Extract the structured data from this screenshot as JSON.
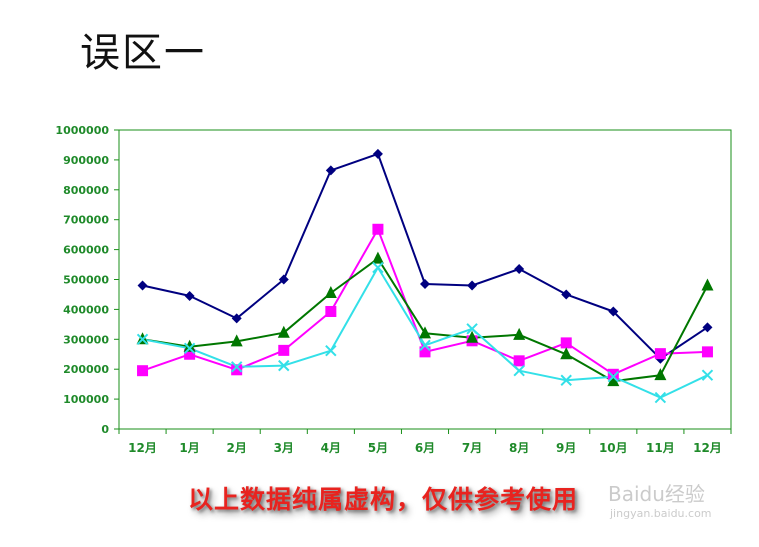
{
  "slide": {
    "title": "误区一",
    "caption": "以上数据纯属虚构，仅供参考使用",
    "watermark": "Baidu经验",
    "watermark_sub": "jingyan.baidu.com"
  },
  "chart_data": {
    "type": "line",
    "categories": [
      "12月",
      "1月",
      "2月",
      "3月",
      "4月",
      "5月",
      "6月",
      "7月",
      "8月",
      "9月",
      "10月",
      "11月",
      "12月"
    ],
    "ylim": [
      0,
      1000000
    ],
    "yticks": [
      0,
      100000,
      200000,
      300000,
      400000,
      500000,
      600000,
      700000,
      800000,
      900000,
      1000000
    ],
    "grid": false,
    "legend": "none",
    "series": [
      {
        "color": "#000080",
        "marker": "diamond",
        "values": [
          480000,
          445000,
          370000,
          500000,
          865000,
          920000,
          485000,
          480000,
          535000,
          450000,
          393000,
          235000,
          340000
        ]
      },
      {
        "color": "#ff00ff",
        "marker": "square",
        "values": [
          195000,
          250000,
          198000,
          263000,
          393000,
          668000,
          258000,
          295000,
          228000,
          288000,
          183000,
          252000,
          258000
        ]
      },
      {
        "color": "#007700",
        "marker": "triangle",
        "values": [
          300000,
          275000,
          293000,
          322000,
          455000,
          570000,
          320000,
          305000,
          315000,
          250000,
          160000,
          180000,
          480000
        ]
      },
      {
        "color": "#33e0e8",
        "marker": "x",
        "values": [
          300000,
          270000,
          208000,
          212000,
          262000,
          540000,
          280000,
          335000,
          195000,
          163000,
          175000,
          105000,
          180000
        ]
      }
    ]
  }
}
